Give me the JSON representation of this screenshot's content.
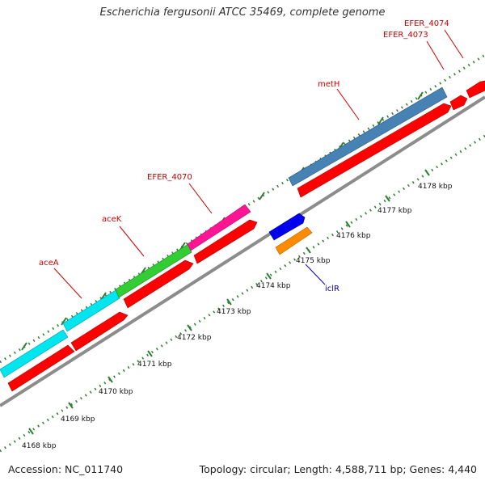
{
  "title": "Escherichia fergusonii ATCC 35469, complete genome",
  "footer": {
    "accession": "Accession: NC_011740",
    "summary": "Topology: circular; Length: 4,588,711 bp; Genes: 4,440"
  },
  "colors": {
    "backbone": "#8c8c8c",
    "tick": "#2e7d32",
    "cds": "#ff0000",
    "forward_label": "#cc0000",
    "reverse_label": "#0000cc",
    "scale_label": "#111111"
  },
  "scale_labels": [
    "4168 kbp",
    "4169 kbp",
    "4170 kbp",
    "4171 kbp",
    "4172 kbp",
    "4173 kbp",
    "4174 kbp",
    "4175 kbp",
    "4176 kbp",
    "4177 kbp",
    "4178 kbp"
  ],
  "forward_genes": [
    {
      "label": "aceA",
      "color": "#00e5ee"
    },
    {
      "label": "aceK",
      "color": "#32cd32"
    },
    {
      "label": "EFER_4070",
      "color": "#ff1493"
    },
    {
      "label": "metH",
      "color": "#4682b4"
    },
    {
      "label": "EFER_4073",
      "color": "#ff0000"
    },
    {
      "label": "EFER_4074",
      "color": "#ff0000"
    }
  ],
  "reverse_genes": [
    {
      "label": "iclR",
      "color": "#ff8c00"
    },
    {
      "label": "",
      "color": "#0000ee"
    }
  ]
}
